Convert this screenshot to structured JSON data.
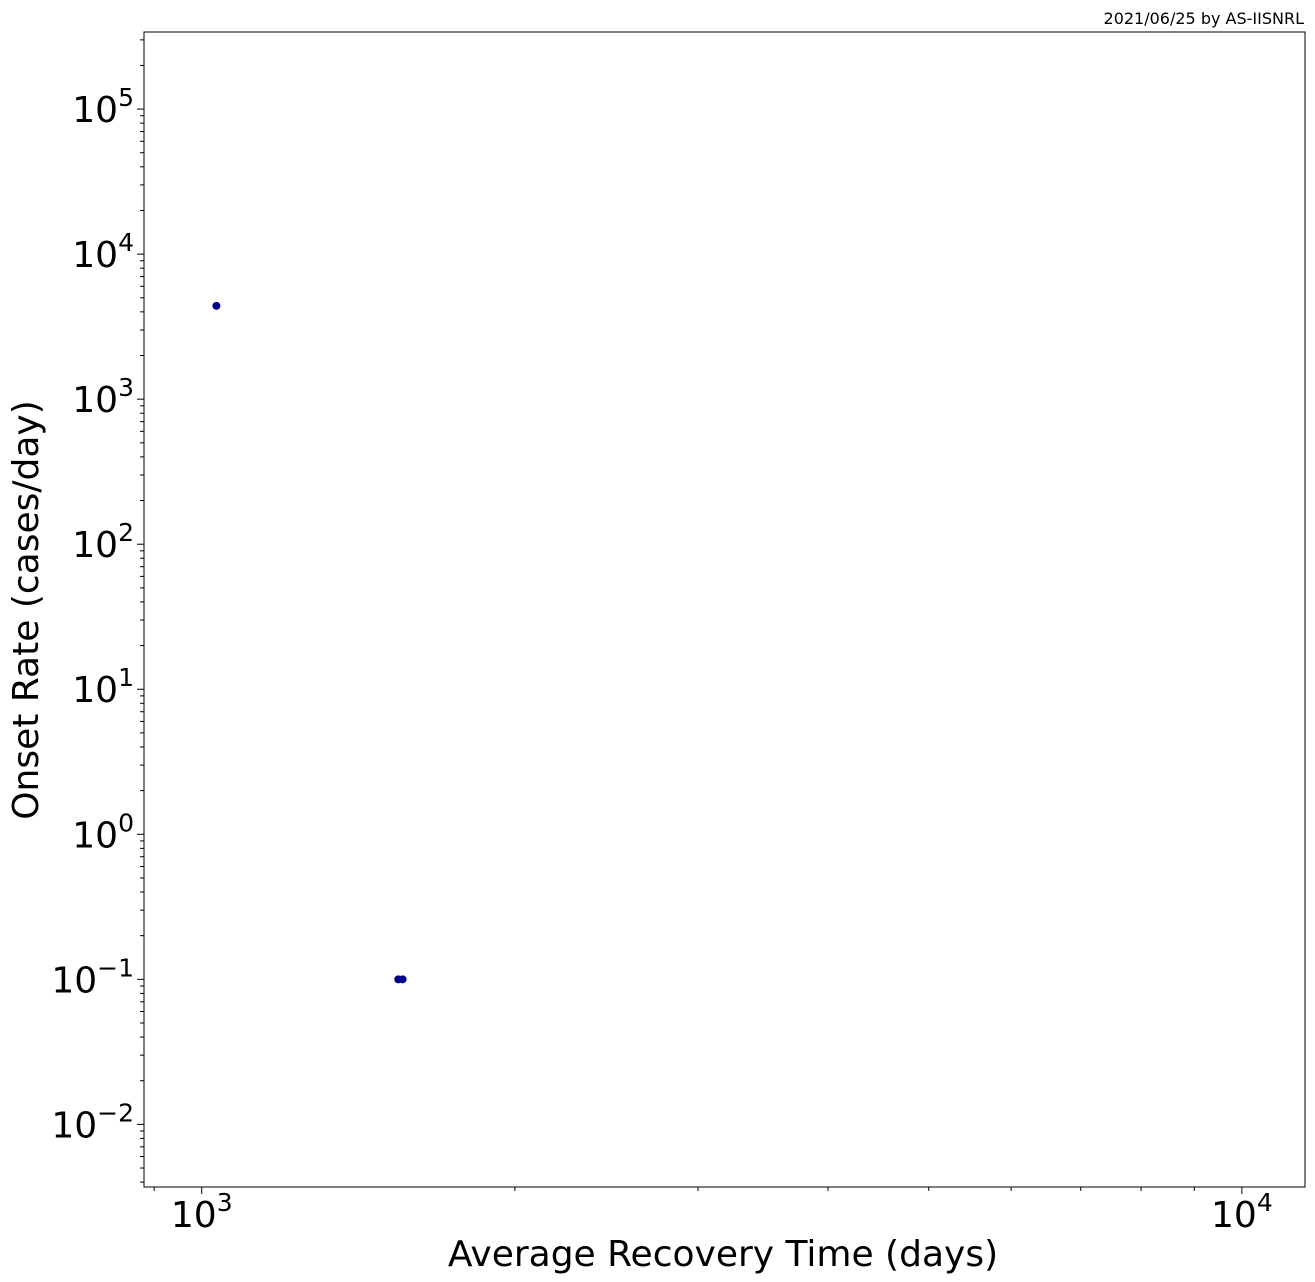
{
  "chart_data": {
    "type": "scatter",
    "title": "",
    "credit": "2021/06/25 by AS-IISNRL",
    "xlabel": "Average Recovery Time (days)",
    "ylabel": "Onset Rate (cases/day)",
    "xscale": "log",
    "yscale": "log",
    "xlim": [
      880,
      11500
    ],
    "ylim": [
      0.0037,
      340000
    ],
    "x_ticks": [
      {
        "value": 1000,
        "base": "10",
        "exp": "3"
      },
      {
        "value": 10000,
        "base": "10",
        "exp": "4"
      }
    ],
    "y_ticks": [
      {
        "value": 0.01,
        "base": "10",
        "exp": "−2"
      },
      {
        "value": 0.1,
        "base": "10",
        "exp": "−1"
      },
      {
        "value": 1,
        "base": "10",
        "exp": "0"
      },
      {
        "value": 10,
        "base": "10",
        "exp": "1"
      },
      {
        "value": 100,
        "base": "10",
        "exp": "2"
      },
      {
        "value": 1000,
        "base": "10",
        "exp": "3"
      },
      {
        "value": 10000,
        "base": "10",
        "exp": "4"
      },
      {
        "value": 100000,
        "base": "10",
        "exp": "5"
      }
    ],
    "grid": false,
    "legend": "none",
    "marker_color": "#00008b",
    "series": [
      {
        "name": "points",
        "points": [
          {
            "x": 1033,
            "y": 4400
          },
          {
            "x": 1545,
            "y": 0.1
          },
          {
            "x": 1560,
            "y": 0.1
          }
        ]
      }
    ]
  }
}
